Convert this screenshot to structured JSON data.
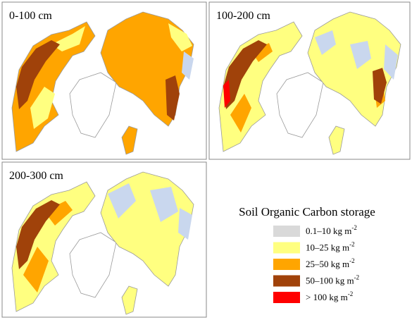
{
  "panels": [
    {
      "label": "0-100 cm"
    },
    {
      "label": "100-200 cm"
    },
    {
      "label": "200-300 cm"
    }
  ],
  "legend": {
    "title": "Soil Organic Carbon storage",
    "items": [
      {
        "label": "0.1–10 kg m",
        "superscript": "-2",
        "color": "#d9d9d9"
      },
      {
        "label": "10–25 kg m",
        "superscript": "-2",
        "color": "#ffff80"
      },
      {
        "label": "25–50 kg m",
        "superscript": "-2",
        "color": "#ffa500"
      },
      {
        "label": "50–100 kg m",
        "superscript": "-2",
        "color": "#a0420a"
      },
      {
        "label": "> 100 kg m",
        "superscript": "-2",
        "color": "#ff0000"
      }
    ]
  }
}
